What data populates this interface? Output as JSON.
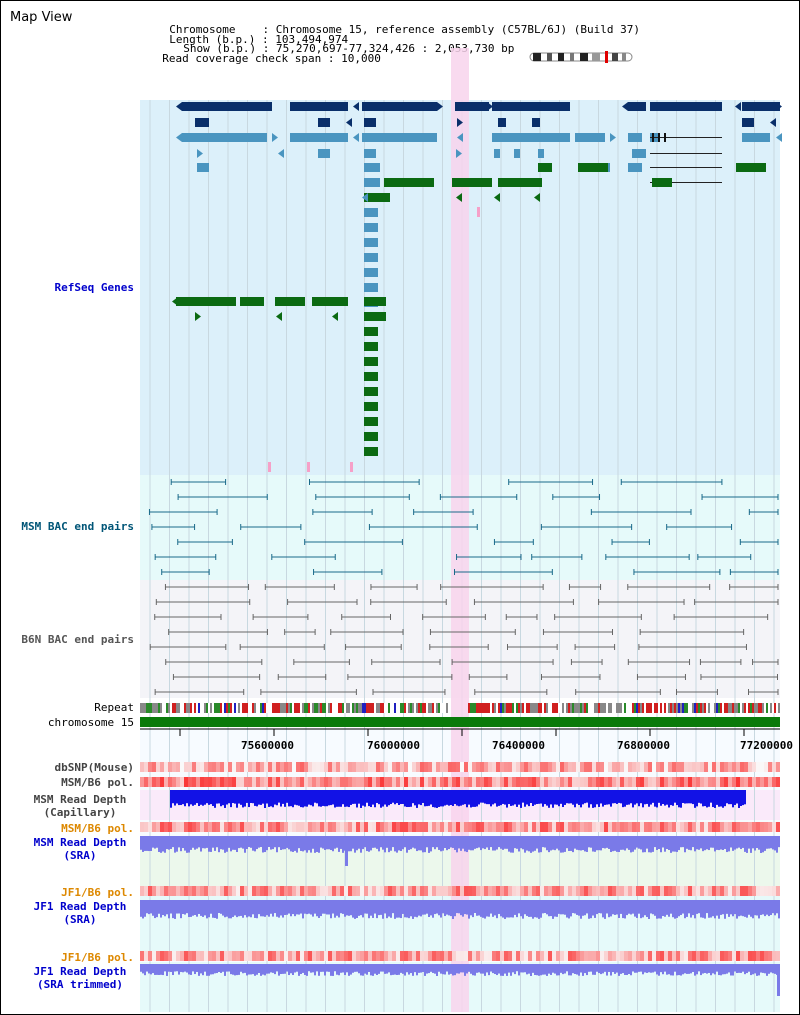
{
  "app": {
    "title": "Map View"
  },
  "header": {
    "chromosome_label": "Chromosome",
    "chromosome_value": "Chromosome 15, reference assembly (C57BL/6J) (Build 37)",
    "length_label": "Length (b.p.)",
    "length_value": "103,494,974",
    "show_label": "Show (b.p.)",
    "show_value": "75,270,697-77,324,426 : 2,053,730 bp",
    "coverage_label": "Read coverage check span",
    "coverage_value": "10,000"
  },
  "tracks": {
    "refseq": {
      "label": "RefSeq Genes",
      "color": "#0000cc"
    },
    "msm_bac": {
      "label": "MSM BAC end pairs",
      "color": "#005577"
    },
    "b6n_bac": {
      "label": "B6N BAC end pairs",
      "color": "#555555"
    },
    "repeat": {
      "label": "Repeat",
      "color": "#000000"
    },
    "chrom": {
      "label": "chromosome 15",
      "color": "#000000"
    },
    "dbsnp": {
      "label": "dbSNP(Mouse)",
      "color": "#444444"
    },
    "msm_b6_pol_1": {
      "label": "MSM/B6 pol.",
      "color": "#444444"
    },
    "msm_depth_cap": {
      "line1": "MSM Read Depth",
      "line2": "(Capillary)",
      "color": "#444444"
    },
    "msm_b6_pol_2": {
      "label": "MSM/B6 pol.",
      "color": "#dd8800"
    },
    "msm_depth_sra": {
      "line1": "MSM Read Depth",
      "line2": "(SRA)",
      "color": "#0000cc"
    },
    "jf1_b6_pol_1": {
      "label": "JF1/B6 pol.",
      "color": "#dd8800"
    },
    "jf1_depth_sra": {
      "line1": "JF1 Read Depth",
      "line2": "(SRA)",
      "color": "#0000cc"
    },
    "jf1_b6_pol_2": {
      "label": "JF1/B6 pol.",
      "color": "#dd8800"
    },
    "jf1_depth_trim": {
      "line1": "JF1 Read Depth",
      "line2": "(SRA trimmed)",
      "color": "#0000cc"
    }
  },
  "axis": {
    "ticks": [
      "75600000",
      "76000000",
      "76400000",
      "76800000",
      "77200000"
    ]
  },
  "colors": {
    "refseq_bg": "#dcf0fa",
    "msm_bac_bg": "#e6fafa",
    "b6n_bac_bg": "#f4f4f8",
    "highlight": "#f8d4ec",
    "gene_dark": "#0a2f6a",
    "gene_mid": "#4a95c0",
    "gene_green": "#0b6a12",
    "chrom_bar": "#0a7a0a",
    "depth_capillary": "#1212e6",
    "depth_sra": "#7a7ae8"
  }
}
